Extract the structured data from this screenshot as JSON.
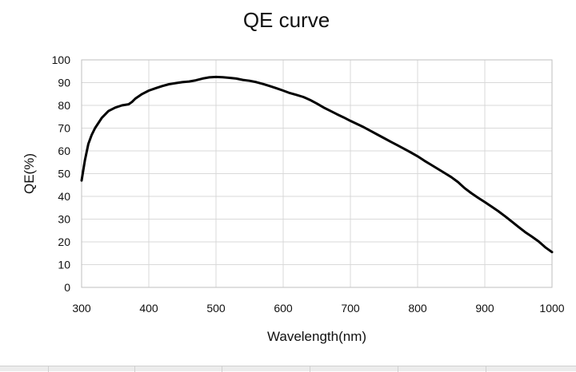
{
  "chart_data": {
    "type": "line",
    "title": "QE curve",
    "xlabel": "Wavelength(nm)",
    "ylabel": "QE(%)",
    "xlim": [
      300,
      1000
    ],
    "ylim": [
      0,
      100
    ],
    "xticks": [
      300,
      400,
      500,
      600,
      700,
      800,
      900,
      1000
    ],
    "yticks": [
      0,
      10,
      20,
      30,
      40,
      50,
      60,
      70,
      80,
      90,
      100
    ],
    "grid": true,
    "legend": "none",
    "line_color": "#000000",
    "series": [
      {
        "x": [
          300,
          305,
          310,
          315,
          320,
          330,
          340,
          350,
          360,
          370,
          375,
          380,
          390,
          400,
          410,
          420,
          430,
          440,
          450,
          460,
          470,
          480,
          490,
          500,
          510,
          520,
          530,
          540,
          550,
          560,
          570,
          580,
          590,
          600,
          610,
          620,
          630,
          640,
          650,
          660,
          670,
          680,
          690,
          700,
          710,
          720,
          730,
          740,
          750,
          760,
          770,
          780,
          790,
          800,
          810,
          820,
          830,
          840,
          850,
          860,
          870,
          880,
          890,
          900,
          910,
          920,
          930,
          940,
          950,
          960,
          970,
          980,
          990,
          1000
        ],
        "values": [
          47,
          56,
          63,
          67,
          70,
          74.5,
          77.5,
          79,
          80,
          80.5,
          81.5,
          83,
          85,
          86.5,
          87.5,
          88.5,
          89.3,
          89.8,
          90.2,
          90.5,
          91,
          91.8,
          92.3,
          92.5,
          92.4,
          92.1,
          91.8,
          91.2,
          90.8,
          90.2,
          89.4,
          88.5,
          87.5,
          86.5,
          85.4,
          84.6,
          83.7,
          82.4,
          80.8,
          79.1,
          77.6,
          76.1,
          74.7,
          73.2,
          71.8,
          70.4,
          68.8,
          67.2,
          65.6,
          64,
          62.5,
          60.9,
          59.3,
          57.6,
          55.7,
          53.9,
          52.1,
          50.3,
          48.5,
          46.3,
          43.6,
          41.4,
          39.4,
          37.5,
          35.5,
          33.5,
          31.3,
          29,
          26.6,
          24.3,
          22.3,
          20.2,
          17.6,
          15.5
        ]
      }
    ]
  }
}
